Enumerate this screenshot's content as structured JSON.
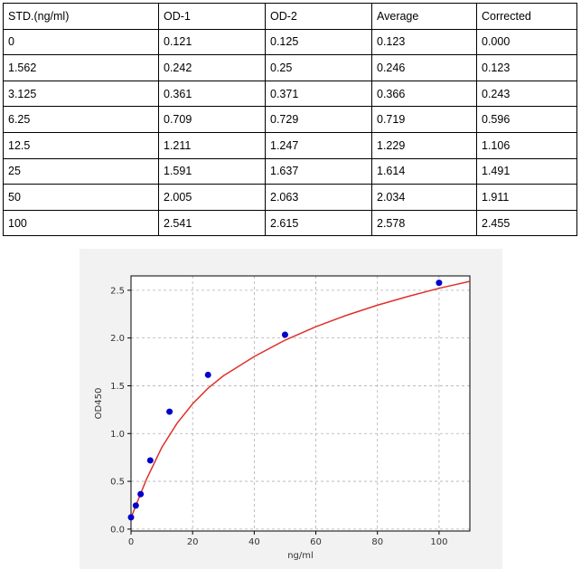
{
  "table": {
    "headers": [
      "STD.(ng/ml)",
      "OD-1",
      "OD-2",
      "Average",
      "Corrected"
    ],
    "rows": [
      [
        "0",
        "0.121",
        "0.125",
        "0.123",
        "0.000"
      ],
      [
        "1.562",
        "0.242",
        "0.25",
        "0.246",
        "0.123"
      ],
      [
        "3.125",
        "0.361",
        "0.371",
        "0.366",
        "0.243"
      ],
      [
        "6.25",
        "0.709",
        "0.729",
        "0.719",
        "0.596"
      ],
      [
        "12.5",
        "1.211",
        "1.247",
        "1.229",
        "1.106"
      ],
      [
        "25",
        "1.591",
        "1.637",
        "1.614",
        "1.491"
      ],
      [
        "50",
        "2.005",
        "2.063",
        "2.034",
        "1.911"
      ],
      [
        "100",
        "2.541",
        "2.615",
        "2.578",
        "2.455"
      ]
    ]
  },
  "chart_data": {
    "type": "scatter",
    "title": "",
    "xlabel": "ng/ml",
    "ylabel": "OD450",
    "xlim": [
      0,
      110
    ],
    "ylim": [
      -0.02,
      2.65
    ],
    "xticks": [
      0,
      20,
      40,
      60,
      80,
      100
    ],
    "yticks": [
      0.0,
      0.5,
      1.0,
      1.5,
      2.0,
      2.5
    ],
    "grid": true,
    "series": [
      {
        "kind": "points",
        "color": "#0000cc",
        "x": [
          0,
          1.562,
          3.125,
          6.25,
          12.5,
          25,
          50,
          100
        ],
        "y": [
          0.123,
          0.246,
          0.366,
          0.719,
          1.229,
          1.614,
          2.034,
          2.578
        ]
      },
      {
        "kind": "fit-curve",
        "color": "#e0302a",
        "x": [
          0,
          2,
          5,
          10,
          15,
          20,
          25,
          30,
          40,
          50,
          60,
          70,
          80,
          90,
          100,
          110
        ],
        "y": [
          0.118,
          0.28,
          0.52,
          0.856,
          1.11,
          1.311,
          1.474,
          1.605,
          1.806,
          1.978,
          2.118,
          2.238,
          2.343,
          2.436,
          2.52,
          2.593
        ]
      }
    ]
  }
}
